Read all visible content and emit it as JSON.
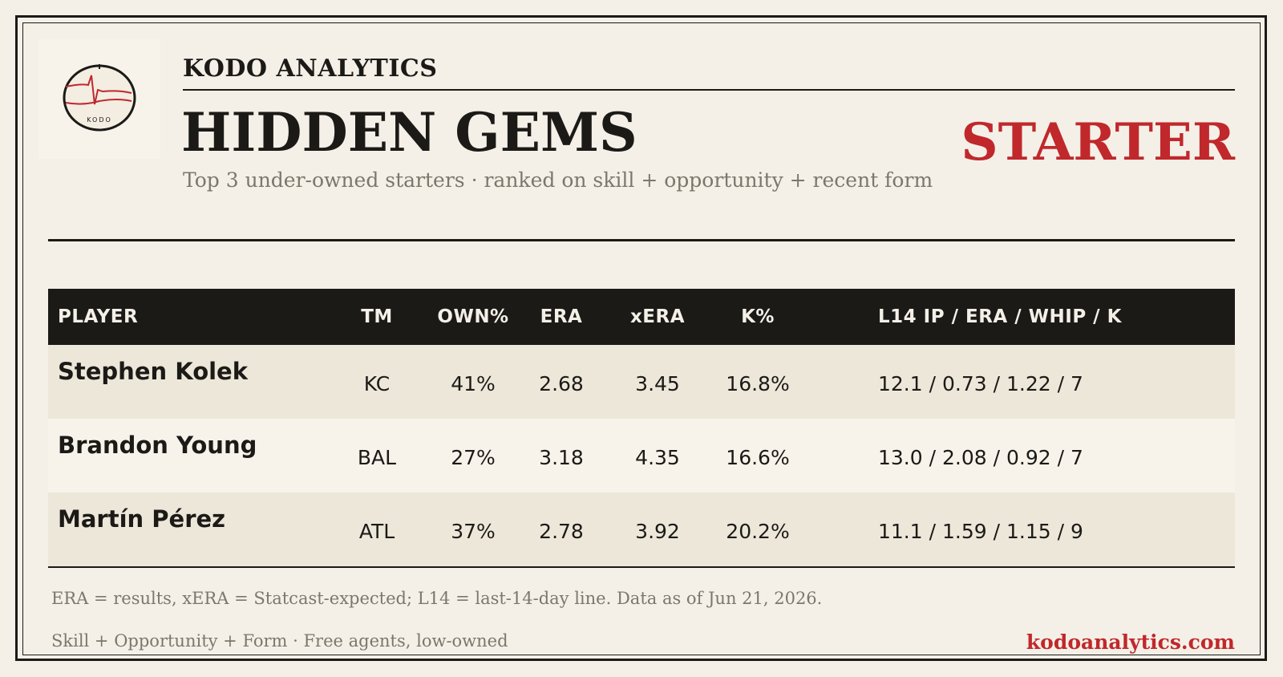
{
  "brand": "KODO ANALYTICS",
  "logo": {
    "text": "KODO",
    "icon": "heartbeat-circle-logo",
    "accent": "#c0282c"
  },
  "title": "HIDDEN GEMS",
  "tag": "STARTER",
  "subtitle": "Top 3 under-owned starters  ·  ranked on skill + opportunity + recent form",
  "table": {
    "headers": {
      "player": "PLAYER",
      "tm": "TM",
      "own": "OWN%",
      "era": "ERA",
      "xera": "xERA",
      "k": "K%",
      "l14": "L14  IP / ERA / WHIP / K"
    },
    "rows": [
      {
        "player": "Stephen Kolek",
        "tm": "KC",
        "own": "41%",
        "era": "2.68",
        "xera": "3.45",
        "k": "16.8%",
        "l14": "12.1 / 0.73 / 1.22 / 7"
      },
      {
        "player": "Brandon Young",
        "tm": "BAL",
        "own": "27%",
        "era": "3.18",
        "xera": "4.35",
        "k": "16.6%",
        "l14": "13.0 / 2.08 / 0.92 / 7"
      },
      {
        "player": "Martín Pérez",
        "tm": "ATL",
        "own": "37%",
        "era": "2.78",
        "xera": "3.92",
        "k": "20.2%",
        "l14": "11.1 / 1.59 / 1.15 / 9"
      }
    ]
  },
  "note": "ERA = results, xERA = Statcast-expected; L14 = last-14-day line. Data as of Jun 21, 2026.",
  "footer": {
    "left": "Skill + Opportunity + Form  ·  Free agents, low-owned",
    "right": "kodoanalytics.com"
  },
  "colors": {
    "background": "#f4f0e7",
    "ink": "#1b1a17",
    "accent": "#c0282c",
    "muted": "#7b776d",
    "row_alt": "#ede7da"
  }
}
